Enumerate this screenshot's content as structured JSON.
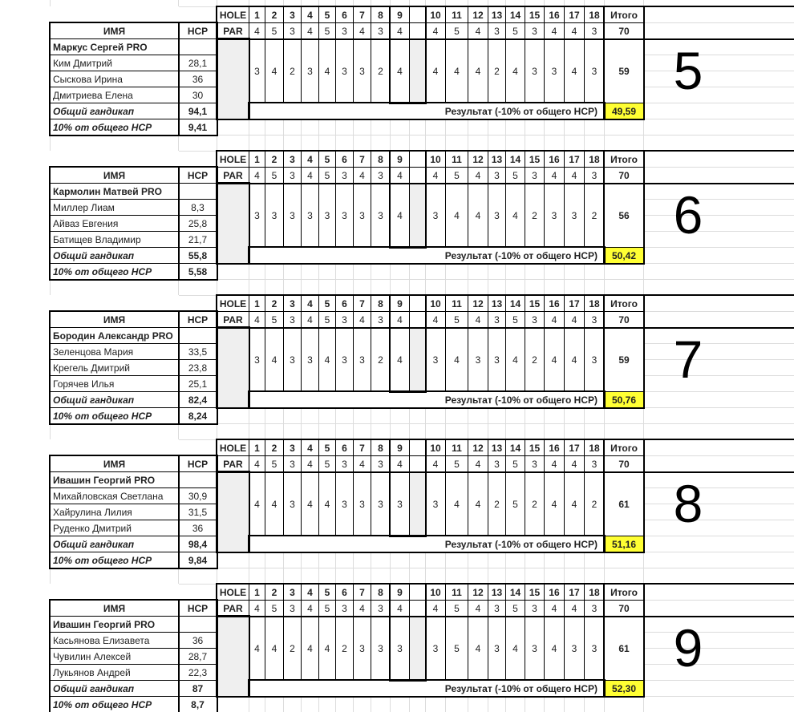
{
  "labels": {
    "hole": "HOLE",
    "par": "PAR",
    "name": "ИМЯ",
    "hcp": "HCP",
    "total": "Итого",
    "handicap_total": "Общий гандикап",
    "ten_percent": "10% от общего HCP",
    "result": "Результат (-10% от общего HCP)"
  },
  "holes": [
    "1",
    "2",
    "3",
    "4",
    "5",
    "6",
    "7",
    "8",
    "9",
    "10",
    "11",
    "12",
    "13",
    "14",
    "15",
    "16",
    "17",
    "18"
  ],
  "par": [
    "4",
    "5",
    "3",
    "4",
    "5",
    "3",
    "4",
    "3",
    "4",
    "4",
    "5",
    "4",
    "3",
    "5",
    "3",
    "4",
    "4",
    "3"
  ],
  "par_total": "70",
  "colors": {
    "result_highlight": "#ffff33",
    "empty_cell": "#efefef"
  },
  "blocks": [
    {
      "group": "5",
      "pro": "Маркус Сергей PRO",
      "players": [
        {
          "name": "Ким Дмитрий",
          "hcp": "28,1"
        },
        {
          "name": "Сыскова Ирина",
          "hcp": "36"
        },
        {
          "name": "Дмитриева Елена",
          "hcp": "30"
        }
      ],
      "handicap_total": "94,1",
      "ten_percent": "9,41",
      "scores": [
        "3",
        "4",
        "2",
        "3",
        "4",
        "3",
        "3",
        "2",
        "4",
        "4",
        "4",
        "4",
        "2",
        "4",
        "3",
        "3",
        "4",
        "3"
      ],
      "score_total": "59",
      "result": "49,59"
    },
    {
      "group": "6",
      "pro": "Кармолин Матвей PRO",
      "players": [
        {
          "name": "Миллер Лиам",
          "hcp": "8,3"
        },
        {
          "name": "Айваз Евгения",
          "hcp": "25,8"
        },
        {
          "name": "Батищев Владимир",
          "hcp": "21,7"
        }
      ],
      "handicap_total": "55,8",
      "ten_percent": "5,58",
      "scores": [
        "3",
        "3",
        "3",
        "3",
        "3",
        "3",
        "3",
        "3",
        "4",
        "3",
        "4",
        "4",
        "3",
        "4",
        "2",
        "3",
        "3",
        "2"
      ],
      "score_total": "56",
      "result": "50,42"
    },
    {
      "group": "7",
      "pro": "Бородин Александр PRO",
      "players": [
        {
          "name": "Зеленцова Мария",
          "hcp": "33,5"
        },
        {
          "name": "Крегель Дмитрий",
          "hcp": "23,8"
        },
        {
          "name": "Горячев Илья",
          "hcp": "25,1"
        }
      ],
      "handicap_total": "82,4",
      "ten_percent": "8,24",
      "scores": [
        "3",
        "4",
        "3",
        "3",
        "4",
        "3",
        "3",
        "2",
        "4",
        "3",
        "4",
        "3",
        "3",
        "4",
        "2",
        "4",
        "4",
        "3"
      ],
      "score_total": "59",
      "result": "50,76"
    },
    {
      "group": "8",
      "pro": "Ивашин Георгий PRO",
      "players": [
        {
          "name": "Михайловская Светлана",
          "hcp": "30,9"
        },
        {
          "name": "Хайрулина Лилия",
          "hcp": "31,5"
        },
        {
          "name": "Руденко Дмитрий",
          "hcp": "36"
        }
      ],
      "handicap_total": "98,4",
      "ten_percent": "9,84",
      "scores": [
        "4",
        "4",
        "3",
        "4",
        "4",
        "3",
        "3",
        "3",
        "3",
        "3",
        "4",
        "4",
        "2",
        "5",
        "2",
        "4",
        "4",
        "2"
      ],
      "score_total": "61",
      "result": "51,16"
    },
    {
      "group": "9",
      "pro": "Ивашин Георгий PRO",
      "players": [
        {
          "name": "Касьянова Елизавета",
          "hcp": "36"
        },
        {
          "name": "Чувилин Алексей",
          "hcp": "28,7"
        },
        {
          "name": "Лукьянов Андрей",
          "hcp": "22,3"
        }
      ],
      "handicap_total": "87",
      "ten_percent": "8,7",
      "scores": [
        "4",
        "4",
        "2",
        "4",
        "4",
        "2",
        "3",
        "3",
        "3",
        "3",
        "5",
        "4",
        "3",
        "4",
        "3",
        "4",
        "3",
        "3"
      ],
      "score_total": "61",
      "result": "52,30"
    }
  ]
}
